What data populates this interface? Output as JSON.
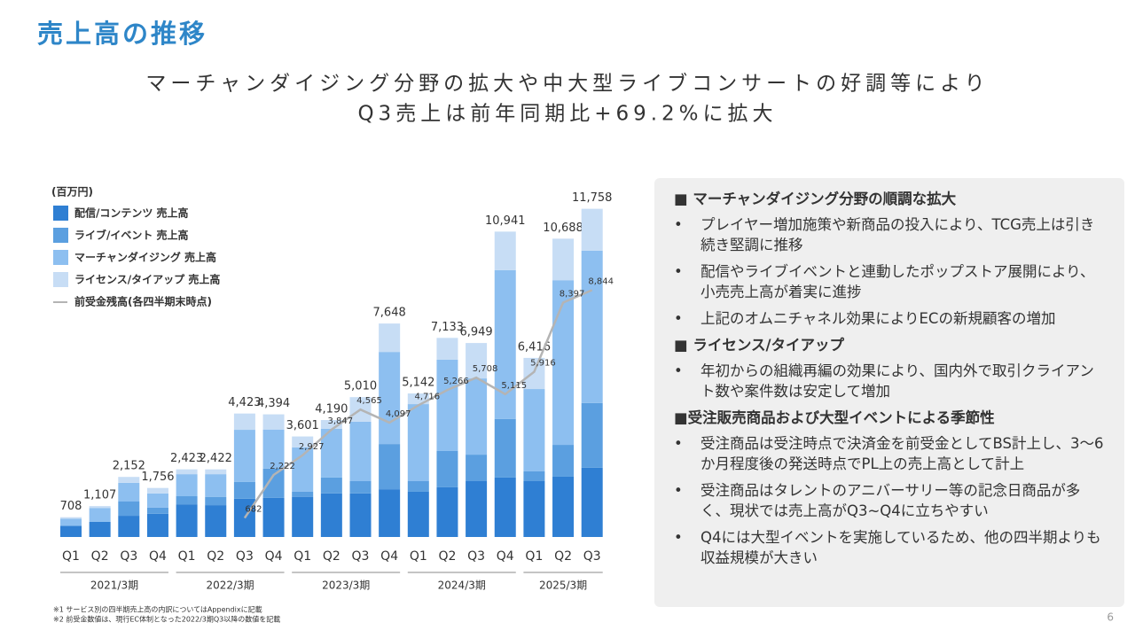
{
  "slide": {
    "title": "売上高の推移",
    "headline": [
      "マーチャンダイジング分野の拡大や中大型ライブコンサートの好調等により",
      "Q3売上は前年同期比+69.2%に拡大"
    ],
    "panel": [
      {
        "heading": "■ マーチャンダイジング分野の順調な拡大",
        "bullets": [
          "プレイヤー増加施策や新商品の投入により、TCG売上は引き続き堅調に推移",
          "配信やライブイベントと連動したポップストア展開により、小売売上高が着実に進捗",
          "上記のオムニチャネル効果によりECの新規顧客の増加"
        ]
      },
      {
        "heading": "■ ライセンス/タイアップ",
        "bullets": [
          "年初からの組織再編の効果により、国内外で取引クライアント数や案件数は安定して増加"
        ]
      },
      {
        "heading": "■受注販売商品および大型イベントによる季節性",
        "bullets": [
          "受注商品は受注時点で決済金を前受金としてBS計上し、3〜6か月程度後の発送時点でPL上の売上高として計上",
          "受注商品はタレントのアニバーサリー等の記念日商品が多く、現状では売上高がQ3~Q4に立ちやすい",
          "Q4には大型イベントを実施しているため、他の四半期よりも収益規模が大きい"
        ]
      }
    ],
    "bullet_mark": "•",
    "footnotes": [
      "※1 サービス別の四半期売上高の内訳についてはAppendixに記載",
      "※2 前受金数値は、現行EC体制となった2022/3期Q3以降の数値を記載"
    ],
    "page": "6"
  },
  "chart_data": {
    "type": "bar",
    "stacked": true,
    "unit": "(百万円)",
    "groups": [
      {
        "label": "2021/3期",
        "categories": [
          "Q1",
          "Q2",
          "Q3",
          "Q4"
        ]
      },
      {
        "label": "2022/3期",
        "categories": [
          "Q1",
          "Q2",
          "Q3",
          "Q4"
        ]
      },
      {
        "label": "2023/3期",
        "categories": [
          "Q1",
          "Q2",
          "Q3",
          "Q4"
        ]
      },
      {
        "label": "2024/3期",
        "categories": [
          "Q1",
          "Q2",
          "Q3",
          "Q4"
        ]
      },
      {
        "label": "2025/3期",
        "categories": [
          "Q1",
          "Q2",
          "Q3"
        ]
      }
    ],
    "ylim": [
      0,
      12000
    ],
    "series": [
      {
        "name": "配信/コンテンツ 売上高",
        "color": "#2f7fd3",
        "values": [
          400,
          540,
          760,
          830,
          1170,
          1140,
          1370,
          1400,
          1430,
          1560,
          1560,
          1710,
          1620,
          1780,
          2000,
          2130,
          2000,
          2160,
          2480
        ]
      },
      {
        "name": "ライブ/イベント 売上高",
        "color": "#5b9fe0",
        "values": [
          0,
          0,
          510,
          220,
          290,
          290,
          600,
          1050,
          190,
          570,
          440,
          1620,
          380,
          1300,
          950,
          2100,
          350,
          1140,
          2320
        ]
      },
      {
        "name": "マーチャンダイジング 売上高",
        "color": "#8dbff0",
        "values": [
          250,
          500,
          670,
          510,
          790,
          820,
          1870,
          1400,
          1590,
          1750,
          2130,
          3300,
          2760,
          3270,
          2730,
          5330,
          2950,
          5900,
          5460
        ]
      },
      {
        "name": "ライセンス/タイアップ 売上高",
        "color": "#c7ddf5",
        "values": [
          58,
          67,
          212,
          196,
          173,
          172,
          583,
          544,
          391,
          310,
          880,
          1018,
          382,
          783,
          1269,
          1381,
          1116,
          1488,
          1498
        ]
      },
      {
        "name": "前受金残高(各四半期末時点)",
        "type": "line",
        "color": "#b4b4b4",
        "values": [
          null,
          null,
          null,
          null,
          null,
          null,
          682,
          2222,
          2927,
          3847,
          4565,
          4097,
          4716,
          5266,
          5708,
          5115,
          5916,
          8397,
          8844
        ],
        "value_labels": [
          null,
          null,
          null,
          null,
          null,
          null,
          "682",
          "2,222",
          "2,927",
          "3,847",
          "4,565",
          "4,097",
          "4,716",
          "5,266",
          "5,708",
          "5,115",
          "5,916",
          "8,397",
          "8,844"
        ]
      }
    ],
    "totals": [
      708,
      1107,
      2152,
      1756,
      2423,
      2422,
      4423,
      4394,
      3601,
      4190,
      5010,
      7648,
      5142,
      7133,
      6949,
      10941,
      6416,
      10688,
      11758
    ],
    "total_labels": [
      "708",
      "1,107",
      "2,152",
      "1,756",
      "2,423",
      "2,422",
      "4,423",
      "4,394",
      "3,601",
      "4,190",
      "5,010",
      "7,648",
      "5,142",
      "7,133",
      "6,949",
      "10,941",
      "6,416",
      "10,688",
      "11,758"
    ]
  }
}
